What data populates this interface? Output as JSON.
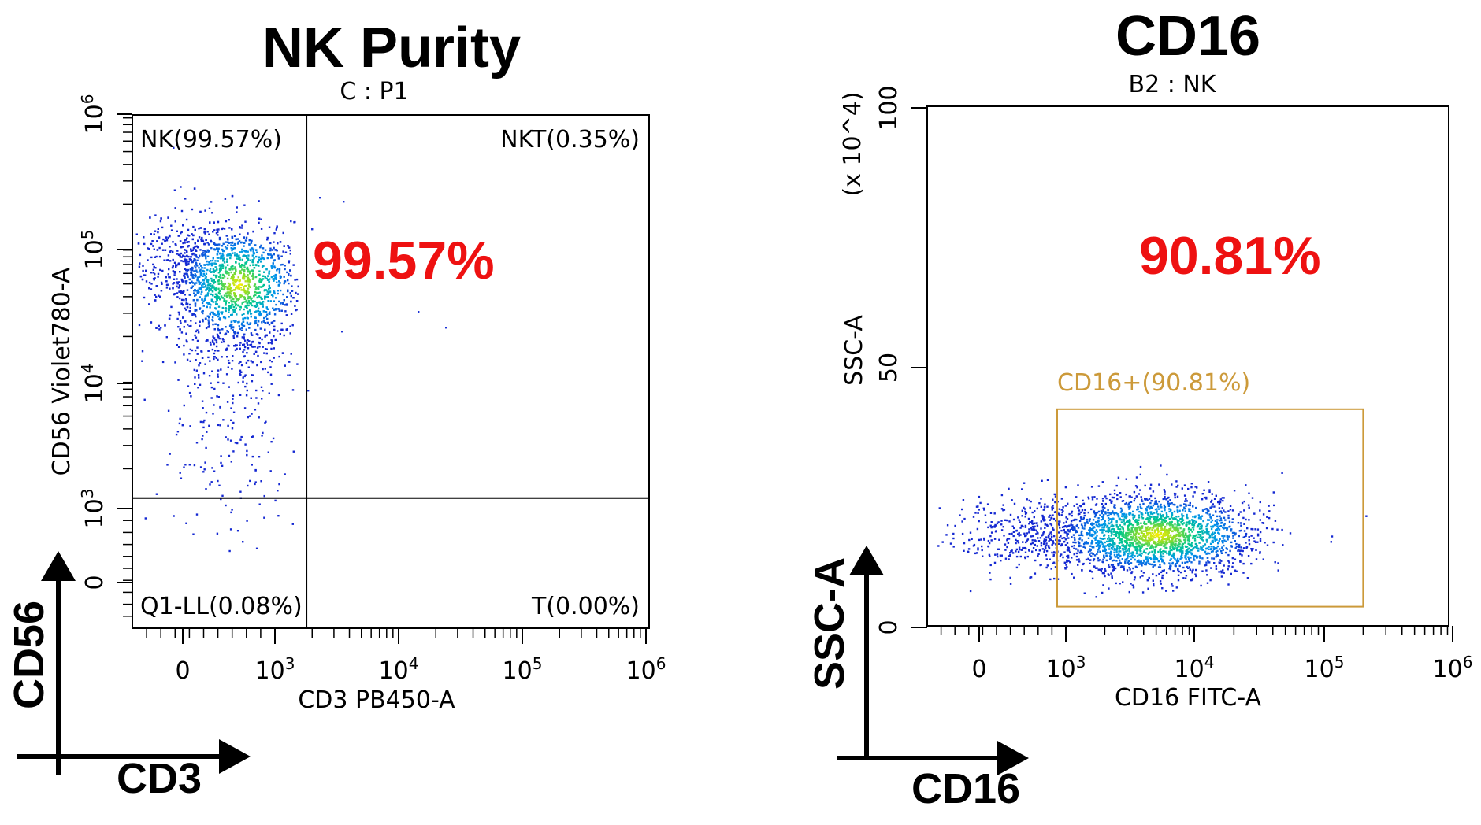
{
  "chart_data": [
    {
      "type": "scatter",
      "title": "NK Purity",
      "subtitle": "C : P1",
      "xlabel": "CD3 PB450-A",
      "ylabel": "CD56 Violet780-A",
      "x_scale": "biexponential",
      "y_scale": "biexponential",
      "x_ticks": [
        "0",
        "10^3",
        "10^4",
        "10^5",
        "10^6"
      ],
      "y_ticks": [
        "0",
        "10^3",
        "10^4",
        "10^5",
        "10^6"
      ],
      "quadrants": [
        {
          "label": "NK(99.57%)",
          "value": 99.57
        },
        {
          "label": "NKT(0.35%)",
          "value": 0.35
        },
        {
          "label": "Q1-LL(0.08%)",
          "value": 0.08
        },
        {
          "label": "T(0.00%)",
          "value": 0.0
        }
      ],
      "quadrant_divider": {
        "x": 1800,
        "y": 1200
      },
      "highlight": "99.57%",
      "population_center": {
        "x": 600,
        "y": 50000
      },
      "arrow_labels": {
        "y": "CD56",
        "x": "CD3"
      }
    },
    {
      "type": "scatter",
      "title": "CD16",
      "subtitle": "B2 : NK",
      "xlabel": "CD16 FITC-A",
      "ylabel": "SSC-A",
      "y_multiplier": "(x 10^4)",
      "x_scale": "biexponential",
      "y_scale": "linear",
      "x_ticks": [
        "0",
        "10^3",
        "10^4",
        "10^5",
        "10^6"
      ],
      "y_ticks": [
        "0",
        "50",
        "100"
      ],
      "ylim": [
        0,
        100
      ],
      "gate": {
        "label": "CD16+(90.81%)",
        "value": 90.81,
        "x_range": [
          900,
          200000
        ],
        "y_range": [
          4,
          42
        ]
      },
      "highlight": "90.81%",
      "population_center": {
        "x": 5000,
        "y": 18
      },
      "arrow_labels": {
        "y": "SSC-A",
        "x": "CD16"
      }
    }
  ],
  "colors": {
    "highlight": "#ee1111",
    "gate": "#cc9a3a",
    "density_low": "#1a2fd6",
    "density_high": "#ffee00"
  }
}
